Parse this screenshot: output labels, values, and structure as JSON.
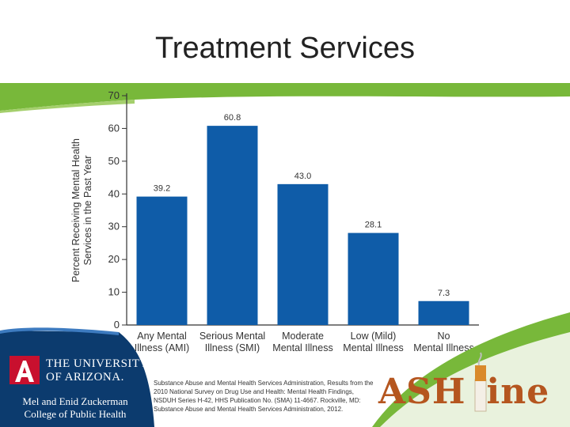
{
  "slide": {
    "title": "Treatment Services"
  },
  "chart_data": {
    "type": "bar",
    "categories": [
      "Any Mental Illness (AMI)",
      "Serious Mental Illness (SMI)",
      "Moderate Mental Illness",
      "Low (Mild) Mental Illness",
      "No Mental Illness"
    ],
    "category_lines": [
      [
        "Any Mental",
        "Illness (AMI)"
      ],
      [
        "Serious Mental",
        "Illness (SMI)"
      ],
      [
        "Moderate",
        "Mental Illness"
      ],
      [
        "Low (Mild)",
        "Mental Illness"
      ],
      [
        "No",
        "Mental Illness"
      ]
    ],
    "values": [
      39.2,
      60.8,
      43.0,
      28.1,
      7.3
    ],
    "data_labels": [
      "39.2",
      "60.8",
      "43.0",
      "28.1",
      "7.3"
    ],
    "ylabel_lines": [
      "Percent Receiving Mental Health",
      "Services in the Past Year"
    ],
    "yticks": [
      0,
      10,
      20,
      30,
      40,
      50,
      60,
      70
    ],
    "ylim": [
      0,
      70
    ],
    "bar_color": "#0f5ca8",
    "grid": false
  },
  "footer": {
    "university_line1": "THE UNIVERSITY",
    "university_line2": "OF ARIZONA.",
    "college_line1": "Mel and Enid Zuckerman",
    "college_line2": "College of Public Health",
    "citation": "Substance Abuse and Mental Health Services Administration, Results from the 2010 National Survey on Drug Use and Health: Mental Health Findings, NSDUH Series H-42, HHS Publication No. (SMA) 11-4667. Rockville, MD: Substance Abuse and Mental Health Services Administration, 2012.",
    "ashline_left": "ASH",
    "ashline_right": "ine",
    "logo_icon": "cigarette-icon",
    "ua_logo_icon": "block-a-logo-icon"
  },
  "colors": {
    "green": "#78b83a",
    "ua_blue": "#0c3b6e",
    "ua_red": "#c8102e",
    "ash_orange": "#b5561f"
  }
}
